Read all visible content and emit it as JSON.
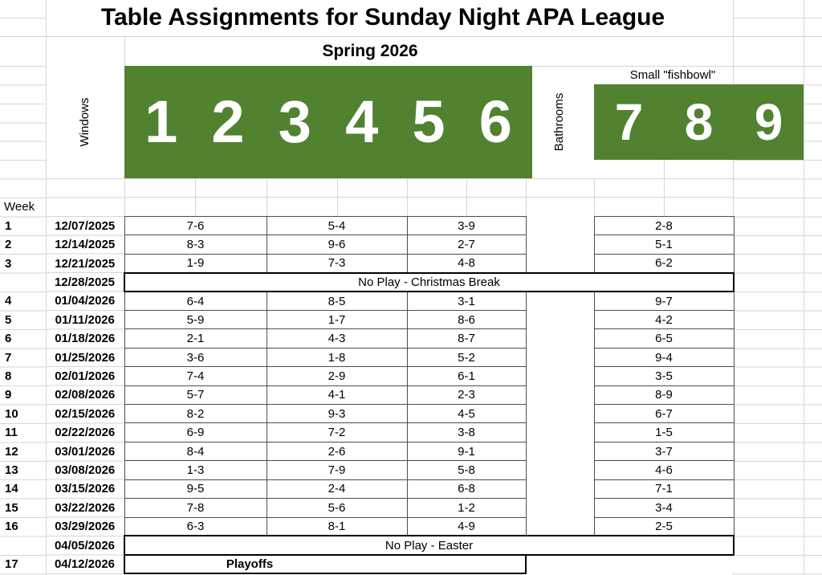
{
  "header": {
    "title": "Table Assignments for Sunday Night APA League",
    "subtitle": "Spring 2026"
  },
  "room_labels": {
    "windows": "Windows",
    "bathrooms": "Bathrooms"
  },
  "banners": {
    "main": {
      "tables": [
        "1",
        "2",
        "3",
        "4",
        "5",
        "6"
      ]
    },
    "fishbowl": {
      "label": "Small \"fishbowl\"",
      "tables": [
        "7",
        "8",
        "9"
      ]
    }
  },
  "schedule": {
    "week_header": "Week",
    "rows": [
      {
        "week": "1",
        "date": "12/07/2025",
        "type": "matches",
        "matches": [
          "7-6",
          "5-4",
          "3-9",
          "2-8"
        ]
      },
      {
        "week": "2",
        "date": "12/14/2025",
        "type": "matches",
        "matches": [
          "8-3",
          "9-6",
          "2-7",
          "5-1"
        ]
      },
      {
        "week": "3",
        "date": "12/21/2025",
        "type": "matches",
        "matches": [
          "1-9",
          "7-3",
          "4-8",
          "6-2"
        ]
      },
      {
        "week": "",
        "date": "12/28/2025",
        "type": "noplay",
        "label": "No Play - Christmas Break"
      },
      {
        "week": "4",
        "date": "01/04/2026",
        "type": "matches",
        "matches": [
          "6-4",
          "8-5",
          "3-1",
          "9-7"
        ]
      },
      {
        "week": "5",
        "date": "01/11/2026",
        "type": "matches",
        "matches": [
          "5-9",
          "1-7",
          "8-6",
          "4-2"
        ]
      },
      {
        "week": "6",
        "date": "01/18/2026",
        "type": "matches",
        "matches": [
          "2-1",
          "4-3",
          "8-7",
          "6-5"
        ]
      },
      {
        "week": "7",
        "date": "01/25/2026",
        "type": "matches",
        "matches": [
          "3-6",
          "1-8",
          "5-2",
          "9-4"
        ]
      },
      {
        "week": "8",
        "date": "02/01/2026",
        "type": "matches",
        "matches": [
          "7-4",
          "2-9",
          "6-1",
          "3-5"
        ]
      },
      {
        "week": "9",
        "date": "02/08/2026",
        "type": "matches",
        "matches": [
          "5-7",
          "4-1",
          "2-3",
          "8-9"
        ]
      },
      {
        "week": "10",
        "date": "02/15/2026",
        "type": "matches",
        "matches": [
          "8-2",
          "9-3",
          "4-5",
          "6-7"
        ]
      },
      {
        "week": "11",
        "date": "02/22/2026",
        "type": "matches",
        "matches": [
          "6-9",
          "7-2",
          "3-8",
          "1-5"
        ]
      },
      {
        "week": "12",
        "date": "03/01/2026",
        "type": "matches",
        "matches": [
          "8-4",
          "2-6",
          "9-1",
          "3-7"
        ]
      },
      {
        "week": "13",
        "date": "03/08/2026",
        "type": "matches",
        "matches": [
          "1-3",
          "7-9",
          "5-8",
          "4-6"
        ]
      },
      {
        "week": "14",
        "date": "03/15/2026",
        "type": "matches",
        "matches": [
          "9-5",
          "2-4",
          "6-8",
          "7-1"
        ]
      },
      {
        "week": "15",
        "date": "03/22/2026",
        "type": "matches",
        "matches": [
          "7-8",
          "5-6",
          "1-2",
          "3-4"
        ]
      },
      {
        "week": "16",
        "date": "03/29/2026",
        "type": "matches",
        "matches": [
          "6-3",
          "8-1",
          "4-9",
          "2-5"
        ]
      },
      {
        "week": "",
        "date": "04/05/2026",
        "type": "noplay",
        "label": "No Play - Easter"
      },
      {
        "week": "17",
        "date": "04/12/2026",
        "type": "playoffs",
        "label": "Playoffs"
      }
    ]
  },
  "colors": {
    "banner_green": "#508230",
    "cell_border": "#4d4d4d",
    "special_border": "#000000",
    "gridline": "#d6d6d6"
  }
}
